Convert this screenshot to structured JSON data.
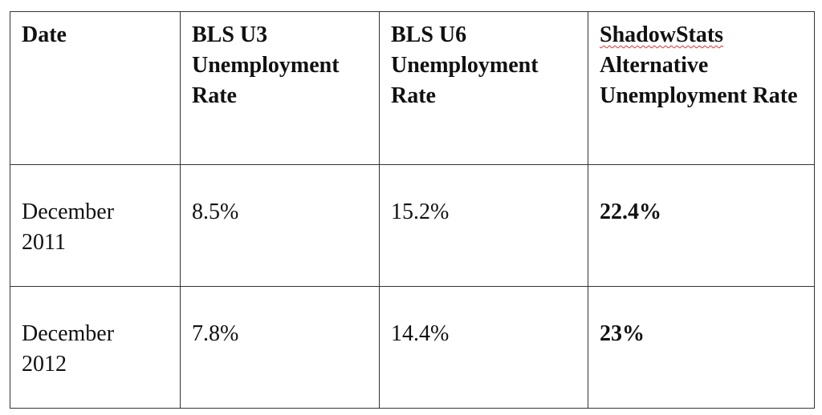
{
  "table": {
    "header": [
      "Date",
      "BLS U3 Unemployment Rate",
      "BLS U6 Unemployment Rate",
      "ShadowStats Alternative Unemployment Rate"
    ],
    "rows": [
      [
        "December 2011",
        "8.5%",
        "15.2%",
        "22.4%"
      ],
      [
        "December 2012",
        "7.8%",
        "14.4%",
        "23%"
      ]
    ]
  }
}
